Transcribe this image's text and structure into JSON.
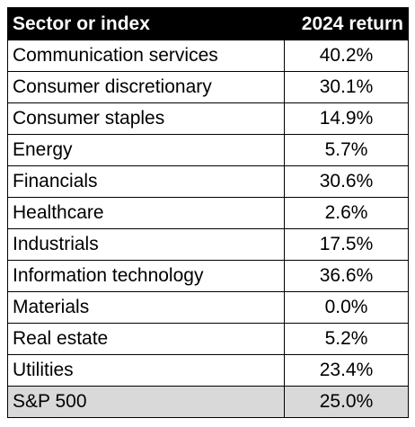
{
  "chart_data": {
    "type": "table",
    "columns": [
      "Sector or index",
      "2024 return"
    ],
    "rows": [
      {
        "sector": "Communication services",
        "return": "40.2%"
      },
      {
        "sector": "Consumer discretionary",
        "return": "30.1%"
      },
      {
        "sector": "Consumer staples",
        "return": "14.9%"
      },
      {
        "sector": "Energy",
        "return": "5.7%"
      },
      {
        "sector": "Financials",
        "return": "30.6%"
      },
      {
        "sector": "Healthcare",
        "return": "2.6%"
      },
      {
        "sector": "Industrials",
        "return": "17.5%"
      },
      {
        "sector": "Information technology",
        "return": "36.6%"
      },
      {
        "sector": "Materials",
        "return": "0.0%"
      },
      {
        "sector": "Real estate",
        "return": "5.2%"
      },
      {
        "sector": "Utilities",
        "return": "23.4%"
      }
    ],
    "total": {
      "sector": "S&P 500",
      "return": "25.0%"
    },
    "colors": {
      "header_bg": "#000000",
      "header_text": "#ffffff",
      "total_bg": "#d9d9d9"
    }
  }
}
